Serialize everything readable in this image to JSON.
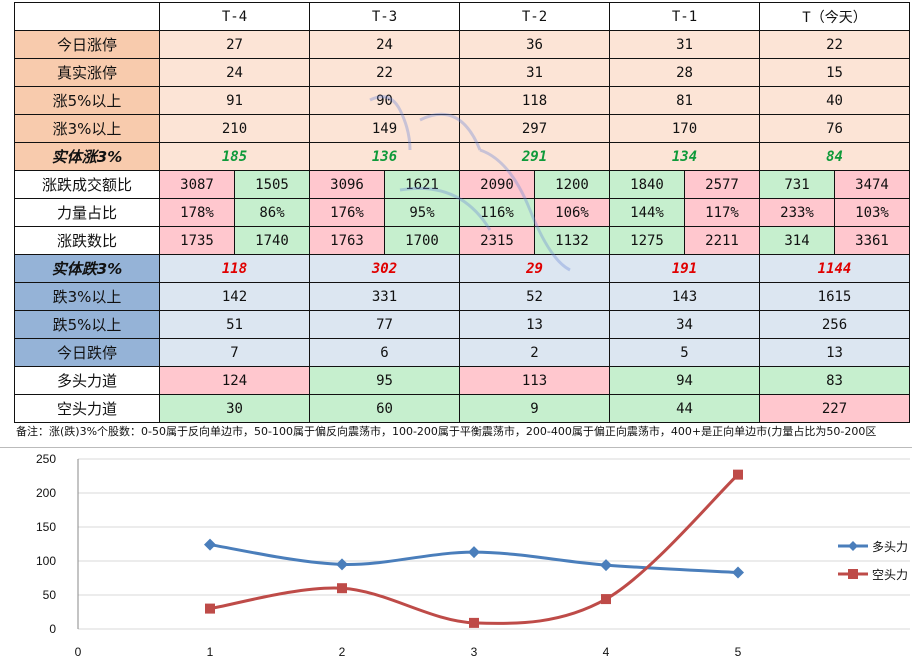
{
  "table": {
    "headers": [
      "",
      "T-4",
      "T-3",
      "T-2",
      "T-1",
      "T（今天）"
    ],
    "up_rows": [
      {
        "label": "今日涨停",
        "values": [
          "27",
          "24",
          "36",
          "31",
          "22"
        ]
      },
      {
        "label": "真实涨停",
        "values": [
          "24",
          "22",
          "31",
          "28",
          "15"
        ]
      },
      {
        "label": "涨5%以上",
        "values": [
          "91",
          "90",
          "118",
          "81",
          "40"
        ]
      },
      {
        "label": "涨3%以上",
        "values": [
          "210",
          "149",
          "297",
          "170",
          "76"
        ]
      },
      {
        "label": "实体涨3%",
        "values": [
          "185",
          "136",
          "291",
          "134",
          "84"
        ]
      }
    ],
    "split_rows": [
      {
        "label": "涨跌成交额比",
        "values": [
          "3087",
          "1505",
          "3096",
          "1621",
          "2090",
          "1200",
          "1840",
          "2577",
          "731",
          "3474"
        ],
        "colors": [
          "red",
          "grn",
          "red",
          "grn",
          "red",
          "grn",
          "grn",
          "red",
          "grn",
          "red"
        ]
      },
      {
        "label": "力量占比",
        "values": [
          "178%",
          "86%",
          "176%",
          "95%",
          "116%",
          "106%",
          "144%",
          "117%",
          "233%",
          "103%"
        ],
        "colors": [
          "red",
          "grn",
          "red",
          "grn",
          "grn",
          "red",
          "grn",
          "red",
          "red",
          "red"
        ]
      },
      {
        "label": "涨跌数比",
        "values": [
          "1735",
          "1740",
          "1763",
          "1700",
          "2315",
          "1132",
          "1275",
          "2211",
          "314",
          "3361"
        ],
        "colors": [
          "red",
          "grn",
          "red",
          "grn",
          "red",
          "grn",
          "grn",
          "red",
          "grn",
          "red"
        ]
      }
    ],
    "down_rows": [
      {
        "label": "实体跌3%",
        "values": [
          "118",
          "302",
          "29",
          "191",
          "1144"
        ]
      },
      {
        "label": "跌3%以上",
        "values": [
          "142",
          "331",
          "52",
          "143",
          "1615"
        ]
      },
      {
        "label": "跌5%以上",
        "values": [
          "51",
          "77",
          "13",
          "34",
          "256"
        ]
      },
      {
        "label": "今日跌停",
        "values": [
          "7",
          "6",
          "2",
          "5",
          "13"
        ]
      }
    ],
    "force_rows": [
      {
        "label": "多头力道",
        "values": [
          "124",
          "95",
          "113",
          "94",
          "83"
        ],
        "colors": [
          "red",
          "grn",
          "red",
          "grn",
          "grn"
        ]
      },
      {
        "label": "空头力道",
        "values": [
          "30",
          "60",
          "9",
          "44",
          "227"
        ],
        "colors": [
          "grn",
          "grn",
          "grn",
          "grn",
          "red"
        ]
      }
    ]
  },
  "note": "备注：涨(跌)3%个股数：0-50属于反向单边市，50-100属于偏反向震荡市，100-200属于平衡震荡市，200-400属于偏正向震荡市，400+是正向单边市(力量占比为50-200区",
  "chart_data": {
    "type": "line",
    "x": [
      1,
      2,
      3,
      4,
      5
    ],
    "xlim": [
      0,
      6
    ],
    "ylim": [
      0,
      250
    ],
    "x_ticks": [
      0,
      1,
      2,
      3,
      4,
      5
    ],
    "y_ticks": [
      0,
      50,
      100,
      150,
      200,
      250
    ],
    "grid": true,
    "legend": "right",
    "series": [
      {
        "name": "多头力",
        "values": [
          124,
          95,
          113,
          94,
          83
        ],
        "color": "#4a7ebb",
        "marker": "diamond"
      },
      {
        "name": "空头力",
        "values": [
          30,
          60,
          9,
          44,
          227
        ],
        "color": "#be4b48",
        "marker": "square"
      }
    ]
  }
}
